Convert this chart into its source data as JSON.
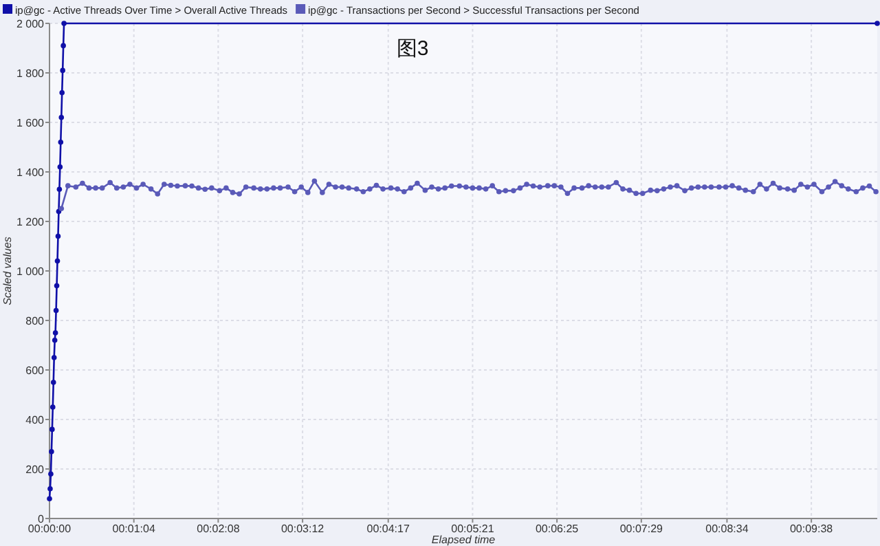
{
  "chart_data": {
    "type": "line",
    "title": "图3",
    "xlabel": "Elapsed time",
    "ylabel": "Scaled values",
    "xlim": [
      0,
      628
    ],
    "ylim": [
      0,
      2000
    ],
    "xticks": [
      {
        "value": 0,
        "label": "00:00:00"
      },
      {
        "value": 64,
        "label": "00:01:04"
      },
      {
        "value": 128,
        "label": "00:02:08"
      },
      {
        "value": 192,
        "label": "00:03:12"
      },
      {
        "value": 257,
        "label": "00:04:17"
      },
      {
        "value": 321,
        "label": "00:05:21"
      },
      {
        "value": 385,
        "label": "00:06:25"
      },
      {
        "value": 449,
        "label": "00:07:29"
      },
      {
        "value": 514,
        "label": "00:08:34"
      },
      {
        "value": 578,
        "label": "00:09:38"
      }
    ],
    "yticks": [
      0,
      200,
      400,
      600,
      800,
      {
        "value": 1000,
        "label": "1 000"
      },
      {
        "value": 1200,
        "label": "1 200"
      },
      {
        "value": 1400,
        "label": "1 400"
      },
      {
        "value": 1600,
        "label": "1 600"
      },
      {
        "value": 1800,
        "label": "1 800"
      },
      {
        "value": 2000,
        "label": "2 000"
      }
    ],
    "grid": true,
    "legend": "top",
    "marker": "circle",
    "line_style": "solid",
    "series": [
      {
        "name": "ip@gc - Active Threads Over Time > Overall Active Threads",
        "color": "#1010a8",
        "x": [
          0,
          0.5,
          1,
          1.5,
          2,
          2.5,
          3,
          3.5,
          4,
          4.5,
          5,
          5.5,
          6,
          6.5,
          7,
          7.5,
          8,
          8.5,
          9,
          9.5,
          10,
          10.5,
          11,
          628
        ],
        "values": [
          80,
          120,
          180,
          270,
          360,
          450,
          550,
          650,
          720,
          750,
          840,
          940,
          1040,
          1140,
          1240,
          1330,
          1420,
          1520,
          1620,
          1720,
          1810,
          1910,
          2000,
          2000
        ]
      },
      {
        "name": "ip@gc - Transactions per Second > Successful Transactions per Second",
        "color": "#5a5ab8",
        "x": [
          9,
          14,
          20,
          25,
          30,
          35,
          40,
          46,
          51,
          56,
          61,
          66,
          71,
          77,
          82,
          87,
          92,
          97,
          103,
          108,
          113,
          118,
          123,
          129,
          134,
          139,
          144,
          149,
          155,
          160,
          165,
          170,
          175,
          181,
          186,
          191,
          196,
          201,
          207,
          212,
          217,
          222,
          227,
          233,
          238,
          243,
          248,
          253,
          259,
          264,
          269,
          274,
          279,
          285,
          290,
          295,
          300,
          305,
          311,
          316,
          321,
          326,
          331,
          336,
          341,
          346,
          352,
          357,
          362,
          367,
          372,
          378,
          383,
          388,
          393,
          398,
          404,
          409,
          414,
          419,
          424,
          430,
          435,
          440,
          445,
          450,
          456,
          461,
          466,
          471,
          476,
          482,
          487,
          492,
          497,
          502,
          508,
          513,
          518,
          523,
          528,
          534,
          539,
          544,
          549,
          554,
          560,
          565,
          570,
          575,
          580,
          586,
          591,
          596,
          601,
          606,
          612,
          617,
          622,
          627
        ],
        "values": [
          1252,
          1344,
          1339,
          1354,
          1335,
          1335,
          1335,
          1357,
          1335,
          1339,
          1350,
          1335,
          1350,
          1331,
          1311,
          1350,
          1346,
          1343,
          1344,
          1343,
          1335,
          1330,
          1335,
          1324,
          1335,
          1317,
          1311,
          1339,
          1335,
          1331,
          1331,
          1335,
          1335,
          1339,
          1320,
          1339,
          1317,
          1363,
          1317,
          1350,
          1339,
          1339,
          1335,
          1331,
          1320,
          1331,
          1346,
          1331,
          1335,
          1331,
          1320,
          1335,
          1354,
          1326,
          1339,
          1331,
          1335,
          1343,
          1343,
          1339,
          1335,
          1335,
          1331,
          1344,
          1320,
          1324,
          1324,
          1335,
          1350,
          1343,
          1339,
          1344,
          1344,
          1339,
          1313,
          1335,
          1335,
          1344,
          1339,
          1339,
          1339,
          1357,
          1331,
          1326,
          1313,
          1313,
          1326,
          1324,
          1331,
          1339,
          1344,
          1324,
          1335,
          1339,
          1339,
          1339,
          1339,
          1339,
          1344,
          1335,
          1326,
          1320,
          1350,
          1331,
          1354,
          1335,
          1331,
          1326,
          1350,
          1339,
          1350,
          1320,
          1339,
          1361,
          1344,
          1331,
          1320,
          1335,
          1343,
          1320
        ]
      }
    ]
  }
}
